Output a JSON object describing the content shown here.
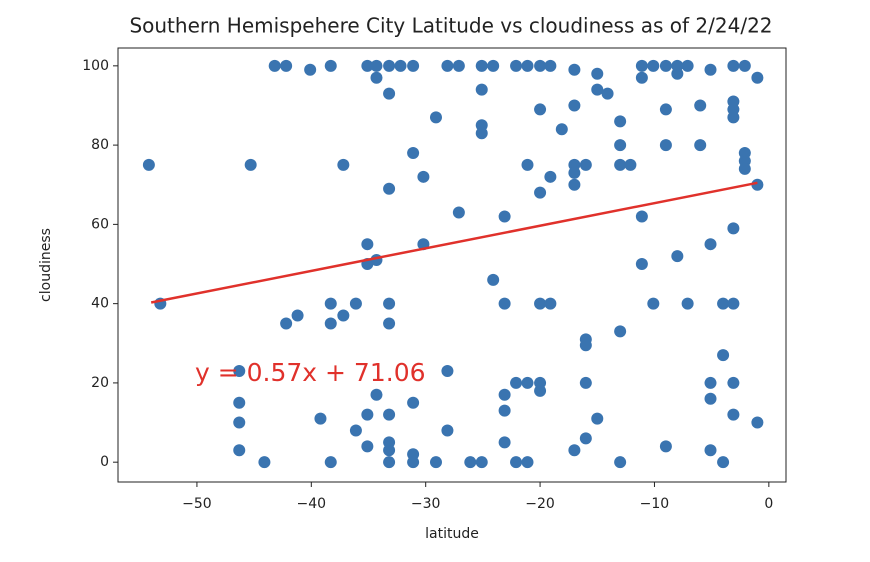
{
  "chart_data": {
    "type": "scatter",
    "title": "Southern Hemispehere City Latitude vs cloudiness as of 2/24/22",
    "x_label": "latitude",
    "y_label": "cloudiness",
    "x": [
      -54.2,
      -53.2,
      -45.3,
      -46.3,
      -46.3,
      -46.3,
      -46.3,
      -44.1,
      -43.2,
      -42.2,
      -42.2,
      -41.2,
      -40.1,
      -38.3,
      -38.3,
      -38.3,
      -38.3,
      -39.2,
      -37.2,
      -37.2,
      -36.1,
      -36.1,
      -35.1,
      -35.1,
      -35.1,
      -35.1,
      -35.1,
      -34.3,
      -34.3,
      -34.3,
      -34.3,
      -33.2,
      -33.2,
      -33.2,
      -33.2,
      -33.2,
      -33.2,
      -33.2,
      -33.2,
      -33.2,
      -32.2,
      -31.1,
      -31.1,
      -31.1,
      -31.1,
      -31.1,
      -30.2,
      -30.2,
      -29.1,
      -29.1,
      -28.1,
      -28.1,
      -28.1,
      -27.1,
      -27.1,
      -26.1,
      -25.1,
      -25.1,
      -25.1,
      -25.1,
      -25.1,
      -24.1,
      -24.1,
      -23.1,
      -23.1,
      -23.1,
      -23.1,
      -23.1,
      -22.1,
      -22.1,
      -22.1,
      -21.1,
      -21.1,
      -21.1,
      -21.1,
      -20.0,
      -20.0,
      -20.0,
      -20.0,
      -20.0,
      -20.0,
      -19.1,
      -19.1,
      -19.1,
      -18.1,
      -17.0,
      -17.0,
      -17.0,
      -17.0,
      -17.0,
      -17.0,
      -16.0,
      -16.0,
      -16.0,
      -16.0,
      -16.0,
      -15.0,
      -15.0,
      -15.0,
      -14.1,
      -13.0,
      -13.0,
      -13.0,
      -13.0,
      -13.0,
      -12.1,
      -11.1,
      -11.1,
      -11.1,
      -11.1,
      -10.1,
      -10.1,
      -9.0,
      -9.0,
      -9.0,
      -9.0,
      -8.0,
      -8.0,
      -8.0,
      -7.1,
      -7.1,
      -6.0,
      -6.0,
      -5.1,
      -5.1,
      -5.1,
      -5.1,
      -5.1,
      -4.0,
      -4.0,
      -4.0,
      -3.1,
      -3.1,
      -3.1,
      -3.1,
      -3.1,
      -3.1,
      -3.1,
      -3.1,
      -2.1,
      -2.1,
      -2.1,
      -2.1,
      -1.0,
      -1.0,
      -1.0
    ],
    "values": [
      75,
      40,
      75,
      23,
      15,
      10,
      3,
      0,
      100,
      100,
      35,
      37,
      99,
      100,
      40,
      35,
      0,
      11,
      75,
      37,
      40,
      8,
      100,
      55,
      50,
      12,
      4,
      100,
      97,
      51,
      17,
      100,
      93,
      69,
      40,
      35,
      12,
      5,
      3,
      0,
      100,
      100,
      78,
      15,
      2,
      0,
      72,
      55,
      87,
      0,
      100,
      8,
      23,
      100,
      63,
      0,
      100,
      94,
      85,
      83,
      0,
      100,
      46,
      62,
      40,
      17,
      13,
      5,
      100,
      20,
      0,
      100,
      75,
      20,
      0,
      100,
      89,
      68,
      40,
      20,
      18,
      100,
      72,
      40,
      84,
      99,
      90,
      75,
      73,
      70,
      3,
      75,
      31,
      29.5,
      20,
      6,
      98,
      94,
      11,
      93,
      86,
      80,
      75,
      33,
      0,
      75,
      100,
      97,
      62,
      50,
      100,
      40,
      100,
      89,
      80,
      4,
      100,
      98,
      52,
      100,
      40,
      90,
      80,
      99,
      55,
      20,
      16,
      3,
      40,
      27,
      0,
      100,
      91,
      89,
      87,
      59,
      40,
      20,
      12,
      100,
      78,
      76,
      74,
      97,
      70,
      10
    ],
    "color": "#3a74b0",
    "fit": {
      "x": [
        -54,
        -1
      ],
      "values": [
        40.28,
        70.49
      ],
      "color": "#e0312b"
    },
    "annotation": "y = 0.57x + 71.06",
    "xlim": [
      -56.9,
      1.5
    ],
    "ylim": [
      -5,
      104.5
    ],
    "xticks": [
      {
        "value": -50,
        "label": "−50"
      },
      {
        "value": -40,
        "label": "−40"
      },
      {
        "value": -30,
        "label": "−30"
      },
      {
        "value": -20,
        "label": "−20"
      },
      {
        "value": -10,
        "label": "−10"
      },
      0
    ],
    "yticks": [
      0,
      20,
      40,
      60,
      80,
      100
    ]
  }
}
